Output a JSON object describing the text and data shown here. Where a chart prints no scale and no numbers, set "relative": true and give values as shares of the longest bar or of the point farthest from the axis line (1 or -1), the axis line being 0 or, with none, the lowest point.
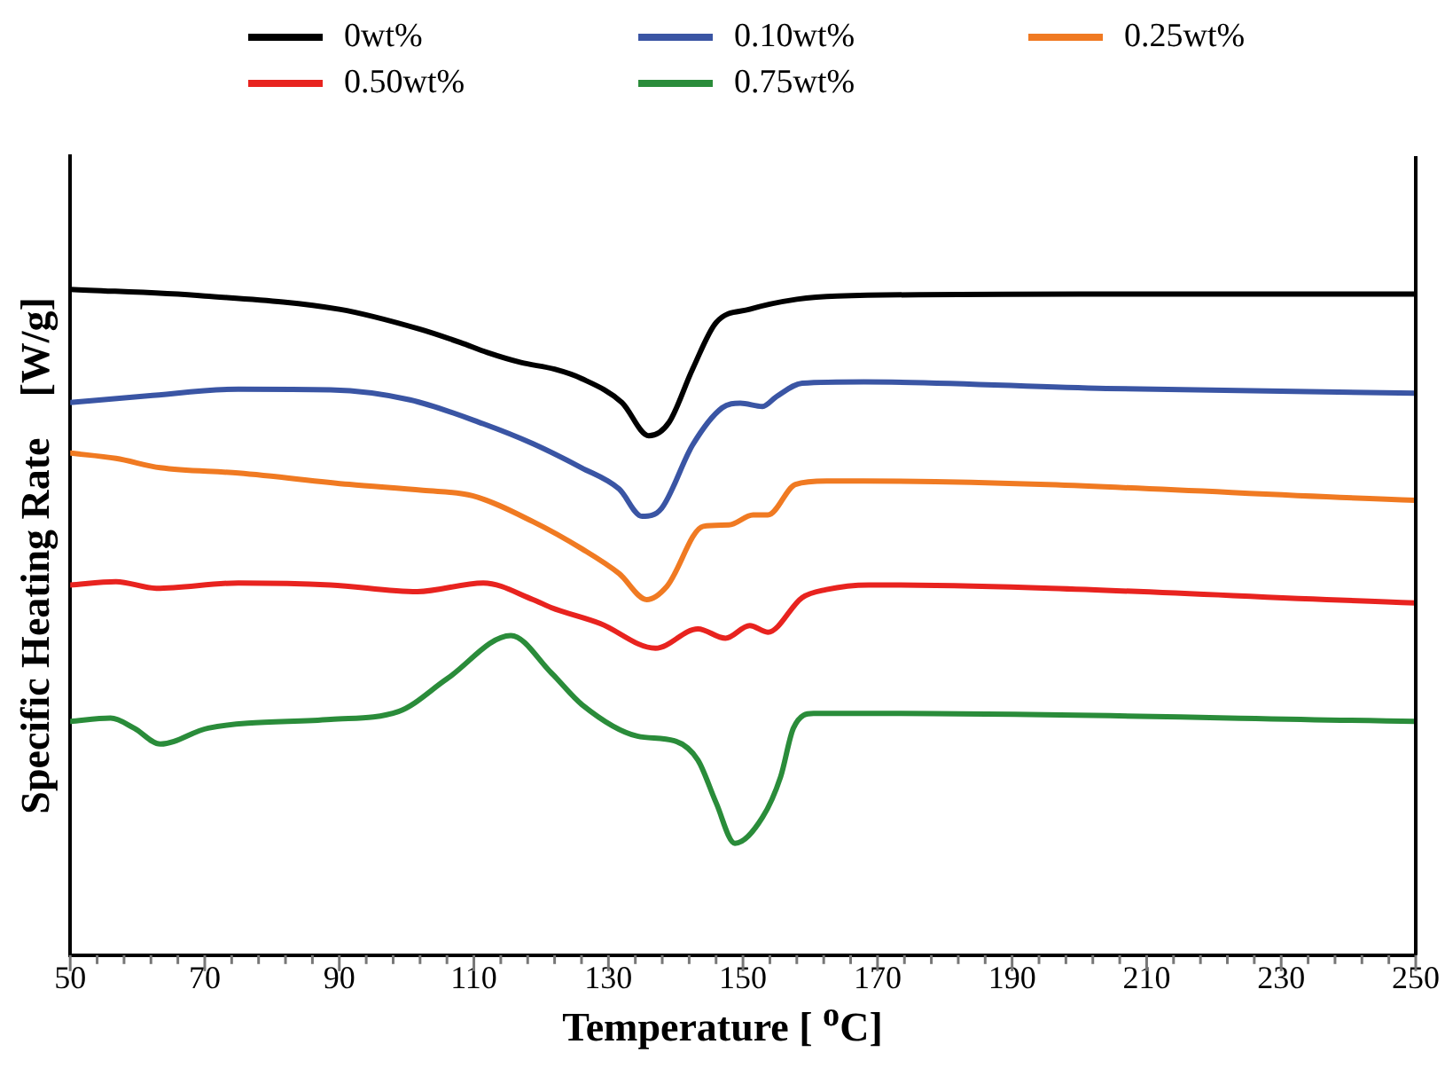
{
  "chart_data": {
    "type": "line",
    "relative": true,
    "xlabel": "Temperature [ $^{o}$C]",
    "ylabel": "Specific Heating Rate    [W/g]",
    "xlim": [
      50,
      250
    ],
    "xticks": [
      50,
      {
        "value": 54,
        "label": null
      },
      {
        "value": 58,
        "label": null
      },
      {
        "value": 62,
        "label": null
      },
      {
        "value": 66,
        "label": null
      },
      70,
      {
        "value": 74,
        "label": null
      },
      {
        "value": 78,
        "label": null
      },
      {
        "value": 82,
        "label": null
      },
      {
        "value": 86,
        "label": null
      },
      90,
      {
        "value": 94,
        "label": null
      },
      {
        "value": 98,
        "label": null
      },
      {
        "value": 102,
        "label": null
      },
      {
        "value": 106,
        "label": null
      },
      110,
      {
        "value": 114,
        "label": null
      },
      {
        "value": 118,
        "label": null
      },
      {
        "value": 122,
        "label": null
      },
      {
        "value": 126,
        "label": null
      },
      130,
      {
        "value": 134,
        "label": null
      },
      {
        "value": 138,
        "label": null
      },
      {
        "value": 142,
        "label": null
      },
      {
        "value": 146,
        "label": null
      },
      150,
      {
        "value": 154,
        "label": null
      },
      {
        "value": 158,
        "label": null
      },
      {
        "value": 162,
        "label": null
      },
      {
        "value": 166,
        "label": null
      },
      170,
      {
        "value": 174,
        "label": null
      },
      {
        "value": 178,
        "label": null
      },
      {
        "value": 182,
        "label": null
      },
      {
        "value": 186,
        "label": null
      },
      190,
      {
        "value": 194,
        "label": null
      },
      {
        "value": 198,
        "label": null
      },
      {
        "value": 202,
        "label": null
      },
      {
        "value": 206,
        "label": null
      },
      210,
      {
        "value": 214,
        "label": null
      },
      {
        "value": 218,
        "label": null
      },
      {
        "value": 222,
        "label": null
      },
      {
        "value": 226,
        "label": null
      },
      230,
      {
        "value": 234,
        "label": null
      },
      {
        "value": 238,
        "label": null
      },
      {
        "value": 242,
        "label": null
      },
      {
        "value": 246,
        "label": null
      },
      250
    ],
    "grid": false,
    "legend": "top",
    "marker": "none",
    "line_style": "solid",
    "series": [
      {
        "name": "0wt%",
        "color": "#000000",
        "x": [
          50,
          70,
          90,
          102,
          108,
          112,
          117,
          122,
          126,
          132,
          136,
          139,
          142.5,
          146,
          151,
          158,
          164,
          200,
          250
        ],
        "values": [
          1.0,
          0.99,
          0.97,
          0.94,
          0.92,
          0.905,
          0.89,
          0.88,
          0.866,
          0.83,
          0.78,
          0.8,
          0.88,
          0.95,
          0.97,
          0.985,
          0.99,
          0.993,
          0.993
        ]
      },
      {
        "name": "0.10wt%",
        "color": "#3a55a4",
        "x": [
          50,
          61.5,
          75,
          88.7,
          100.5,
          111.4,
          118.8,
          126,
          131.6,
          135,
          137.9,
          142.5,
          146.9,
          149.6,
          152.9,
          155,
          158.8,
          168,
          204,
          250
        ],
        "values": [
          0.83,
          0.84,
          0.85,
          0.849,
          0.834,
          0.798,
          0.768,
          0.732,
          0.7,
          0.659,
          0.671,
          0.766,
          0.822,
          0.829,
          0.824,
          0.839,
          0.859,
          0.861,
          0.851,
          0.844
        ]
      },
      {
        "name": "0.25wt%",
        "color": "#f07a22",
        "x": [
          50,
          56.8,
          63.4,
          75,
          91.5,
          102.4,
          109.8,
          118.8,
          126.1,
          131.6,
          135.7,
          138.7,
          144.1,
          147.9,
          151.5,
          153.7,
          157.8,
          162.4,
          168,
          250
        ],
        "values": [
          0.754,
          0.746,
          0.732,
          0.724,
          0.707,
          0.698,
          0.69,
          0.651,
          0.61,
          0.573,
          0.534,
          0.554,
          0.644,
          0.646,
          0.661,
          0.661,
          0.707,
          0.712,
          0.712,
          0.683
        ]
      },
      {
        "name": "0.50wt%",
        "color": "#e8231f",
        "x": [
          50,
          56.8,
          62.8,
          75,
          88.7,
          101.6,
          111.4,
          118.8,
          121.5,
          128.8,
          137,
          143.3,
          147.4,
          151,
          153.7,
          158.8,
          162.4,
          168.7,
          250
        ],
        "values": [
          0.556,
          0.561,
          0.551,
          0.559,
          0.556,
          0.546,
          0.559,
          0.534,
          0.522,
          0.498,
          0.461,
          0.49,
          0.476,
          0.495,
          0.485,
          0.537,
          0.549,
          0.556,
          0.529
        ]
      },
      {
        "name": "0.75wt%",
        "color": "#2a8c3a",
        "x": [
          50,
          56,
          59.5,
          63.4,
          70.5,
          88.7,
          98.8,
          106,
          115.5,
          121.5,
          126.1,
          134.3,
          139.8,
          143.3,
          146,
          148.8,
          152.9,
          155.6,
          157.5,
          160.5,
          171.4,
          250
        ],
        "values": [
          0.351,
          0.356,
          0.341,
          0.317,
          0.341,
          0.354,
          0.366,
          0.415,
          0.48,
          0.424,
          0.376,
          0.329,
          0.322,
          0.293,
          0.229,
          0.168,
          0.207,
          0.268,
          0.341,
          0.363,
          0.363,
          0.351
        ]
      }
    ]
  }
}
